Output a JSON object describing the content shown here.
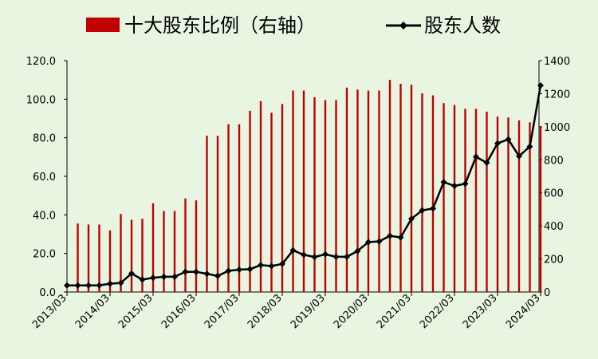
{
  "chart_data": {
    "type": "bar+line",
    "legend": {
      "placement": "top",
      "bar_label": "十大股东比例（右轴）",
      "line_label": "股东人数"
    },
    "colors": {
      "bar": "#c00000",
      "line": "#000000",
      "background": "#e8f5e1"
    },
    "grid": false,
    "y_left": {
      "ylim": [
        0,
        120
      ],
      "ticks": [
        "0.0",
        "20.0",
        "40.0",
        "60.0",
        "80.0",
        "100.0",
        "120.0"
      ]
    },
    "y_right": {
      "ylim": [
        0,
        1400
      ],
      "ticks": [
        "0",
        "200",
        "400",
        "600",
        "800",
        "1000",
        "1200",
        "1400"
      ]
    },
    "x_tick_labels": [
      "2013/03",
      "2014/03",
      "2015/03",
      "2016/03",
      "2017/03",
      "2018/03",
      "2019/03",
      "2020/03",
      "2021/03",
      "2022/03",
      "2023/03",
      "2024/03"
    ],
    "series": [
      {
        "name": "十大股东比例（右轴）",
        "kind": "bar",
        "axis": "left",
        "values": [
          0,
          35.5,
          35,
          35,
          32,
          40.5,
          37.5,
          38,
          46,
          42,
          42,
          48.5,
          47.5,
          81,
          81,
          87,
          87,
          94,
          99,
          93,
          97.5,
          104.5,
          104.5,
          101,
          99.5,
          99.5,
          106,
          105,
          104.5,
          104.5,
          110,
          108,
          107.5,
          103,
          102,
          98,
          97,
          95,
          95,
          93.5,
          91,
          90.5,
          89,
          88,
          86
        ]
      },
      {
        "name": "股东人数",
        "kind": "line",
        "axis": "right",
        "values": [
          40,
          40,
          40,
          40,
          50,
          55,
          112,
          75,
          86,
          92,
          92,
          122,
          122,
          110,
          97,
          128,
          135,
          138,
          163,
          157,
          170,
          252,
          225,
          212,
          228,
          213,
          213,
          248,
          302,
          306,
          340,
          330,
          443,
          494,
          505,
          665,
          642,
          655,
          818,
          782,
          900,
          923,
          822,
          880,
          1250
        ]
      }
    ]
  }
}
